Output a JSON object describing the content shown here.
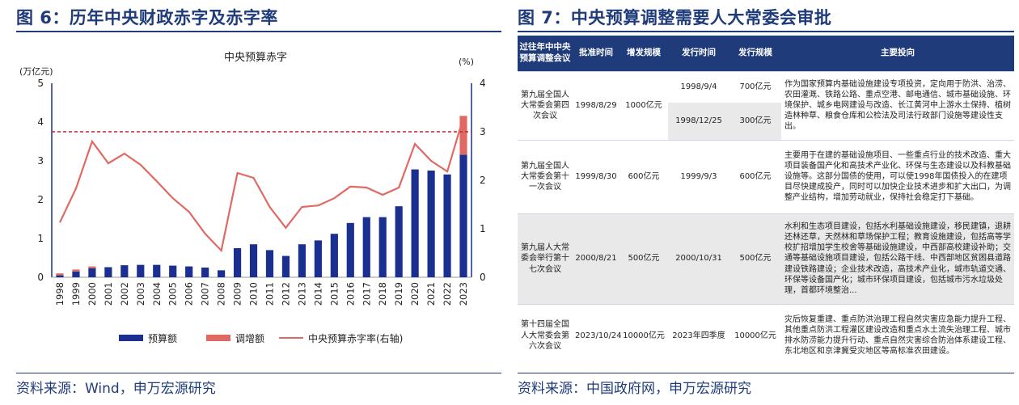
{
  "left": {
    "title": "图 6：历年中央财政赤字及赤字率",
    "source": "资料来源：Wind，申万宏源研究"
  },
  "right": {
    "title": "图 7：中央预算调整需要人大常委会审批",
    "source": "资料来源：中国政府网，申万宏源研究",
    "table": {
      "headers": [
        "过往年中中央预算调整会议",
        "批准时间",
        "增发规模",
        "发行时间",
        "发行规模",
        "主要投向"
      ],
      "rows": [
        {
          "meeting": "第九届全国人大常委会第四次会议",
          "approval": "1998/8/29",
          "scale": "1000亿元",
          "issues": [
            {
              "date": "1998/9/4",
              "amount": "700亿元"
            },
            {
              "date": "1998/12/25",
              "amount": "300亿元"
            }
          ],
          "purpose": "作为国家预算内基础设施建设专项投资，定向用于防洪、治涝、农田灌溉、铁路公路、重点空港、邮电通信、城市基础设施、环境保护、城乡电网建设与改造、长江黄河中上游水土保持、植树造林种草、粮食仓库和公检法及司法行政部门设施等建设性支出。"
        },
        {
          "meeting": "第九届全国人大常委会第十一次会议",
          "approval": "1999/8/30",
          "scale": "600亿元",
          "issues": [
            {
              "date": "1999/9/3",
              "amount": "600亿元"
            }
          ],
          "purpose": "主要用于在建的基础设施项目、一些重点行业的技术改造、重大项目装备国产化和高技术产业化、环保与生态建设以及科教基础设施等。这部分国债的使用，可以使1998年国债投入的在建项目尽快建成投产，同时可以加快企业技术进步和扩大出口，为调整产业结构，增加劳动就业，保持社会稳定打下基础。"
        },
        {
          "meeting": "第九届人大常委会举行第十七次会议",
          "approval": "2000/8/21",
          "scale": "500亿元",
          "issues": [
            {
              "date": "2000/10/31",
              "amount": "500亿元"
            }
          ],
          "purpose": "水利和生态项目建设，包括水利基础设施建设，移民建镇，退耕还林还草，天然林和草场保护工程；教育设施建设，包括高等学校扩招增加学生校舍等基础设施建设，中西部高校建设补助；交通等基础设施项目建设，包括公路干线、中西部地区贫困县道路建设铁路建设；企业技术改造，高技术产业化，城市轨道交通、环保等设备国产化；城市环保项目建设，包括城市污水垃圾处理，首都环境整治..."
        },
        {
          "meeting": "第十四届全国人大常委会第六次会议",
          "approval": "2023/10/24",
          "scale": "10000亿元",
          "issues": [
            {
              "date": "2023年四季度",
              "amount": "10000亿元"
            }
          ],
          "purpose": "灾后恢复重建、重点防洪治理工程自然灾害应急能力提升工程、其他重点防洪工程灌区建设改造和重点水土流失治理工程、城市排水防涝能力提升行动、重点自然灾害综合防治体系建设工程、东北地区和京津冀受灾地区等高标准农田建设。"
        }
      ]
    }
  },
  "chart_data": {
    "type": "bar",
    "title": "中央预算赤字",
    "yleft_unit": "(万亿元)",
    "yright_unit": "(%)",
    "ylim": [
      0,
      5
    ],
    "ylim_right": [
      0,
      4
    ],
    "yticks": [
      0,
      1,
      2,
      3,
      4,
      5
    ],
    "yticks_right": [
      0,
      1,
      2,
      3,
      4
    ],
    "categories": [
      "1998",
      "1999",
      "2000",
      "2001",
      "2002",
      "2003",
      "2004",
      "2005",
      "2006",
      "2007",
      "2008",
      "2009",
      "2010",
      "2011",
      "2012",
      "2013",
      "2014",
      "2015",
      "2016",
      "2017",
      "2018",
      "2019",
      "2020",
      "2021",
      "2022",
      "2023"
    ],
    "series": [
      {
        "name": "预算额",
        "kind": "bar",
        "axis": "left",
        "color": "#1a2f8f",
        "values": [
          0.05,
          0.15,
          0.23,
          0.26,
          0.31,
          0.32,
          0.32,
          0.3,
          0.28,
          0.25,
          0.18,
          0.75,
          0.85,
          0.7,
          0.55,
          0.85,
          0.95,
          1.12,
          1.4,
          1.55,
          1.55,
          1.83,
          2.78,
          2.75,
          2.65,
          3.16
        ]
      },
      {
        "name": "调增额",
        "kind": "bar",
        "axis": "left",
        "color": "#e06a63",
        "values": [
          0.05,
          0.05,
          0.05,
          0,
          0,
          0,
          0,
          0,
          0,
          0,
          0,
          0,
          0,
          0,
          0,
          0,
          0,
          0,
          0,
          0,
          0,
          0,
          0,
          0,
          0,
          1.0
        ]
      },
      {
        "name": "中央预算赤字率(右轴)",
        "kind": "line",
        "axis": "right",
        "color": "#e06a63",
        "values": [
          1.13,
          1.83,
          2.8,
          2.35,
          2.55,
          2.32,
          1.98,
          1.63,
          1.35,
          0.9,
          0.55,
          2.15,
          2.05,
          1.45,
          1.02,
          1.45,
          1.48,
          1.63,
          1.87,
          1.85,
          1.7,
          1.85,
          2.75,
          2.4,
          2.18,
          3.3
        ]
      }
    ],
    "reference_line": {
      "axis": "right",
      "value": 3.0,
      "color": "#c0262a"
    },
    "legend_position": "bottom"
  }
}
